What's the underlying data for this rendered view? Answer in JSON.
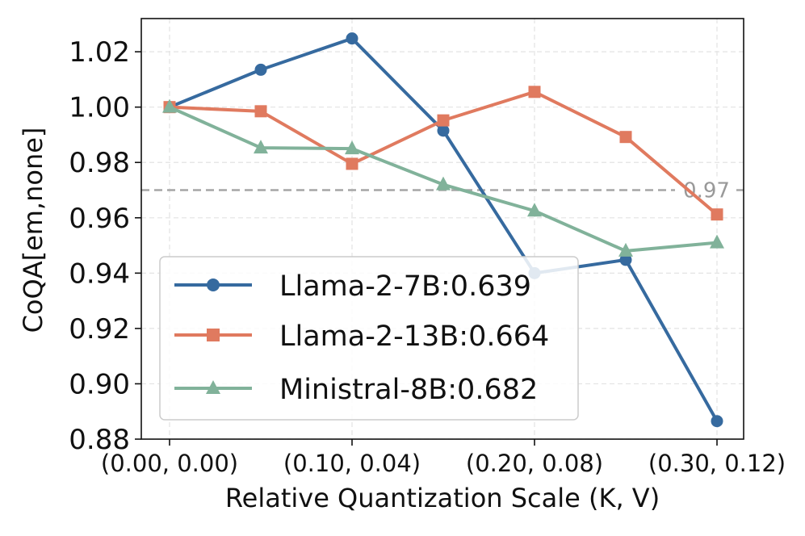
{
  "chart_data": {
    "type": "line",
    "xlabel": "Relative Quantization Scale (K, V)",
    "ylabel": "CoQA[em,none]",
    "ylim": [
      0.88,
      1.032
    ],
    "grid": true,
    "legend_position": "lower-left",
    "x_positions": [
      0,
      1,
      2,
      3,
      4,
      5,
      6
    ],
    "x_tick_positions": [
      0,
      2,
      4,
      6
    ],
    "x_tick_labels": [
      "(0.00, 0.00)",
      "(0.10, 0.04)",
      "(0.20, 0.08)",
      "(0.30, 0.12)"
    ],
    "y_ticks": [
      0.88,
      0.9,
      0.92,
      0.94,
      0.96,
      0.98,
      1.0,
      1.02
    ],
    "y_tick_labels": [
      "0.88",
      "0.90",
      "0.92",
      "0.94",
      "0.96",
      "0.98",
      "1.00",
      "1.02"
    ],
    "reference_line": {
      "value": 0.97,
      "label": "0.97",
      "color": "#a6a6a6"
    },
    "series": [
      {
        "name": "Llama-2-7B:0.639",
        "color": "#366a9f",
        "marker": "circle",
        "values": [
          1.0,
          1.0135,
          1.0248,
          0.9915,
          0.94,
          0.9448,
          0.8865
        ]
      },
      {
        "name": "Llama-2-13B:0.664",
        "color": "#e07a5f",
        "marker": "square",
        "values": [
          1.0,
          0.9985,
          0.9795,
          0.9952,
          1.0055,
          0.9892,
          0.9612
        ]
      },
      {
        "name": "Ministral-8B:0.682",
        "color": "#81b29a",
        "marker": "triangle",
        "values": [
          1.0,
          0.9853,
          0.985,
          0.972,
          0.9625,
          0.948,
          0.951
        ]
      }
    ]
  }
}
